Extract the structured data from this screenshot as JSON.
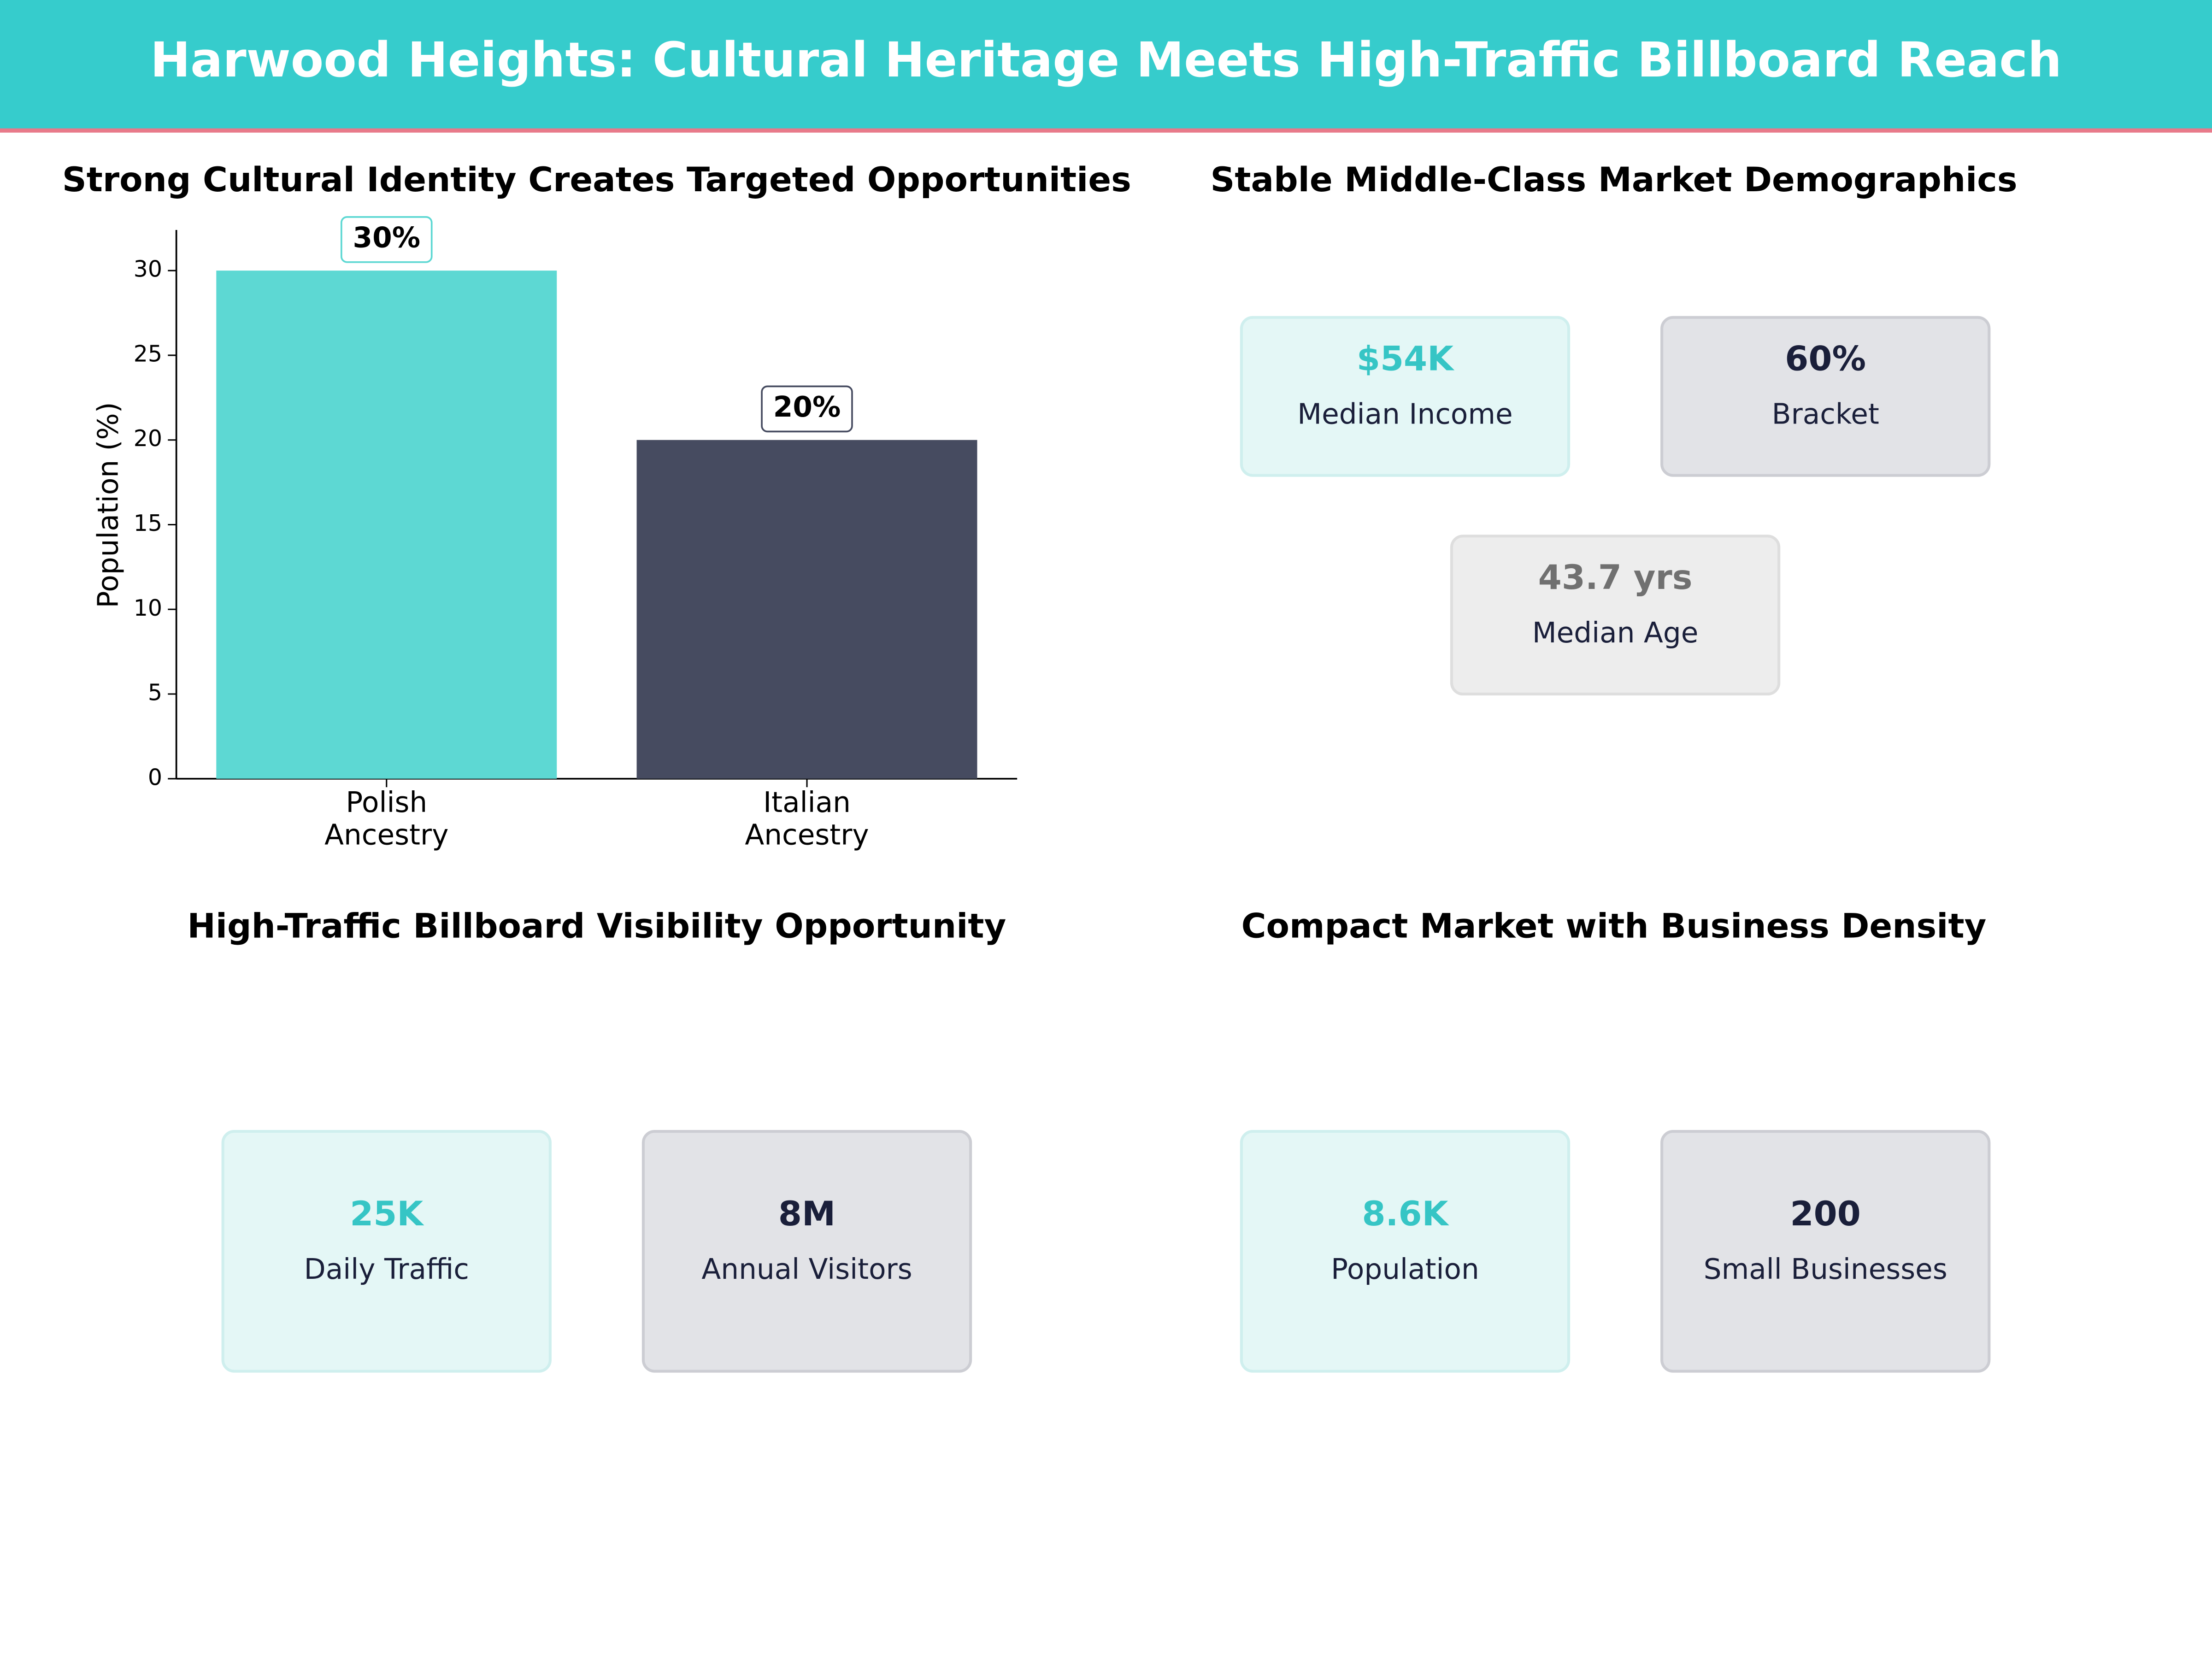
{
  "title": "Harwood Heights: Cultural Heritage Meets High-Traffic Billboard Reach",
  "chart_data": {
    "type": "bar",
    "title": "Strong Cultural Identity Creates Targeted Opportunities",
    "categories": [
      "Polish\nAncestry",
      "Italian\nAncestry"
    ],
    "values": [
      30,
      20
    ],
    "value_labels": [
      "30%",
      "20%"
    ],
    "colors": [
      "#5dd8d3",
      "#464b60"
    ],
    "ylabel": "Population (%)",
    "ylim": [
      0,
      32.4
    ],
    "yticks": [
      0,
      5,
      10,
      15,
      20,
      25,
      30
    ]
  },
  "demographics": {
    "title": "Stable Middle-Class Market Demographics",
    "cards": [
      {
        "value": "$54K",
        "label": "Median Income"
      },
      {
        "value": "60%",
        "label": "Bracket"
      },
      {
        "value": "43.7 yrs",
        "label": "Median Age"
      }
    ]
  },
  "traffic": {
    "title": "High-Traffic Billboard Visibility Opportunity",
    "cards": [
      {
        "value": "25K",
        "label": "Daily Traffic"
      },
      {
        "value": "8M",
        "label": "Annual Visitors"
      }
    ]
  },
  "market": {
    "title": "Compact Market with Business Density",
    "cards": [
      {
        "value": "8.6K",
        "label": "Population"
      },
      {
        "value": "200",
        "label": "Small Businesses"
      }
    ]
  }
}
